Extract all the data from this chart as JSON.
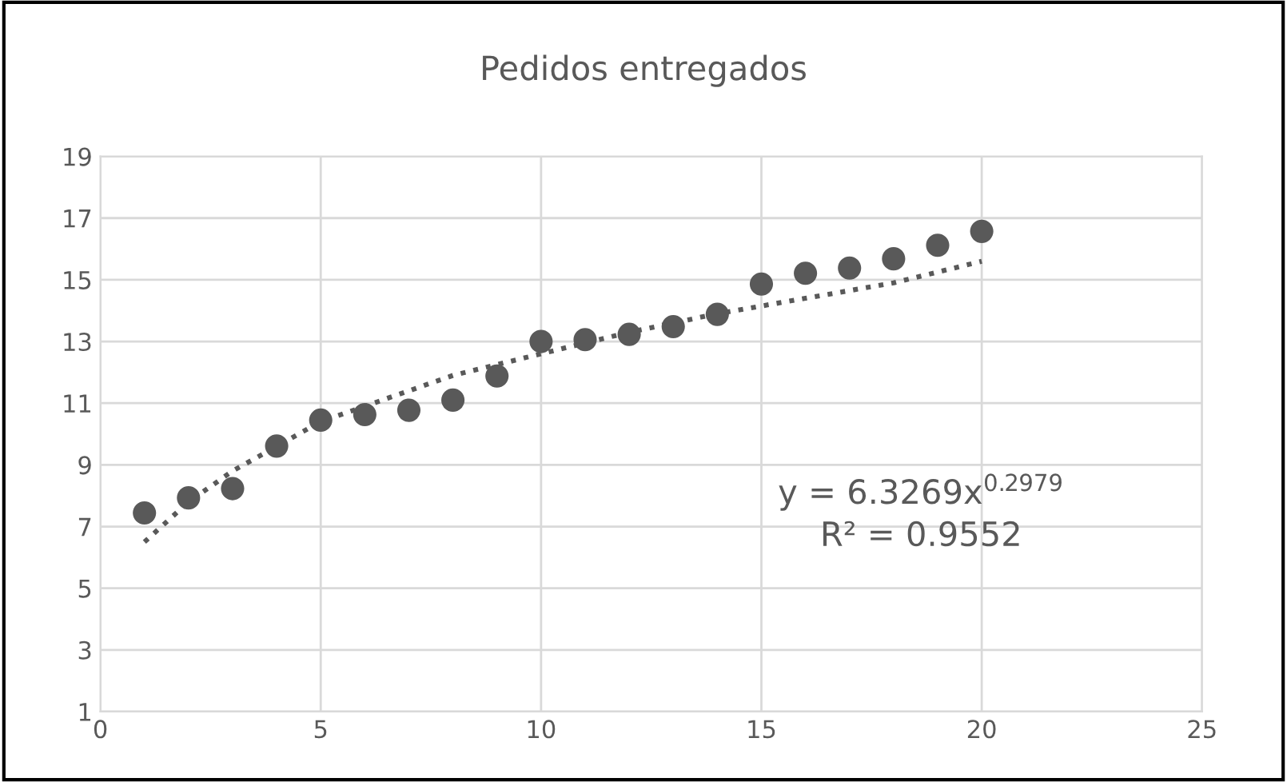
{
  "chart_data": {
    "type": "scatter",
    "title": "Pedidos entregados",
    "x": [
      1,
      2,
      3,
      4,
      5,
      6,
      7,
      8,
      9,
      10,
      11,
      12,
      13,
      14,
      15,
      16,
      17,
      18,
      19,
      20
    ],
    "series": [
      {
        "color": "#595959",
        "marker": "circle",
        "values": [
          7.44,
          7.93,
          8.23,
          9.61,
          10.45,
          10.63,
          10.77,
          11.1,
          11.88,
          13.0,
          13.06,
          13.23,
          13.48,
          13.88,
          14.86,
          15.21,
          15.38,
          15.68,
          16.12,
          16.57
        ]
      },
      {
        "type": "line",
        "color": "#595959",
        "line_style": "dotted",
        "marker": "none",
        "x": [
          1,
          2,
          3,
          4,
          5,
          6,
          8,
          10,
          12,
          14,
          16,
          18,
          20
        ],
        "values": [
          6.5,
          7.8,
          8.8,
          9.6,
          10.4,
          10.9,
          11.9,
          12.6,
          13.3,
          13.9,
          14.4,
          14.9,
          15.6
        ]
      }
    ],
    "xlim": [
      0,
      25
    ],
    "xticks": [
      0,
      5,
      10,
      15,
      20,
      25
    ],
    "ylim": [
      1,
      19
    ],
    "yticks": [
      1,
      3,
      5,
      7,
      9,
      11,
      13,
      15,
      17,
      19
    ],
    "grid": true,
    "legend": false,
    "annotations": [
      "y = 6.3269x$^{0.2979}$",
      "R² = 0.9552"
    ]
  }
}
